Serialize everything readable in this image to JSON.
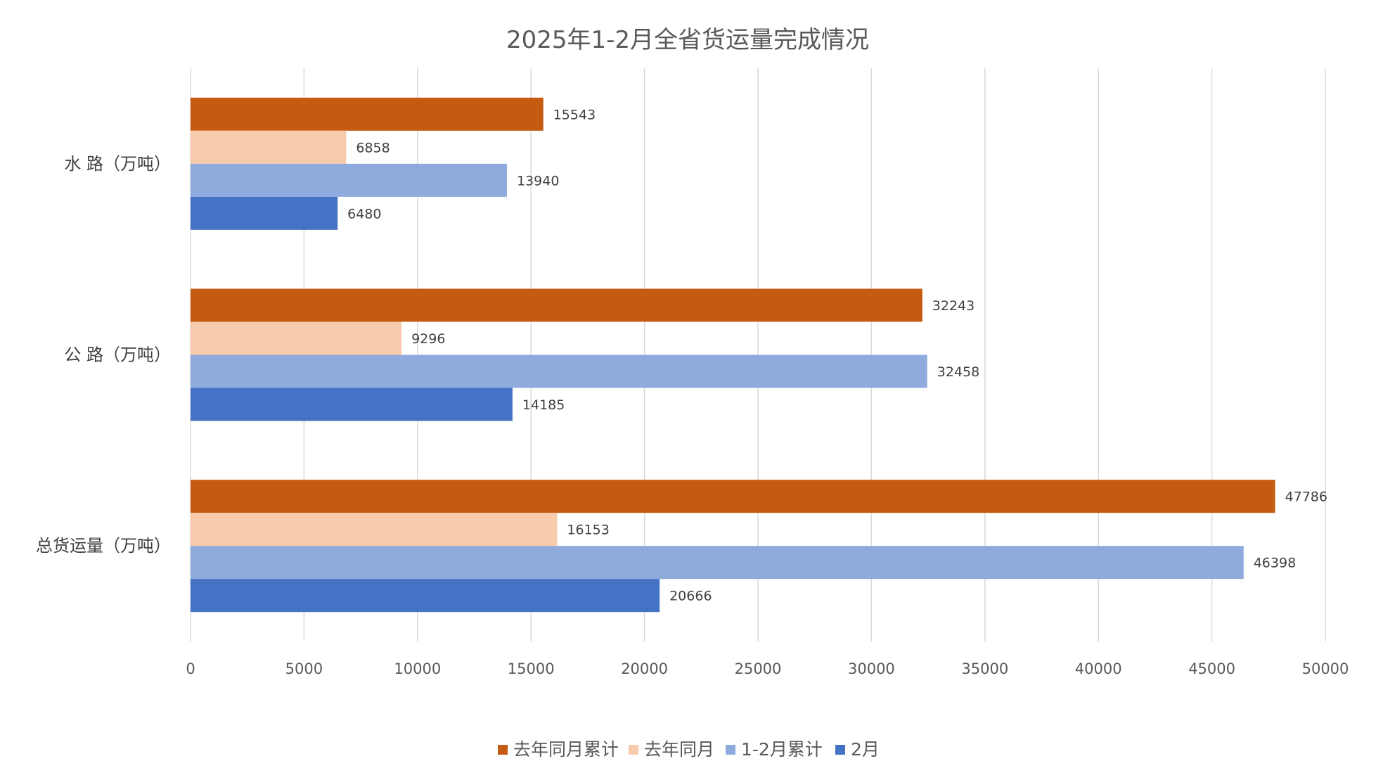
{
  "chart_data": {
    "type": "bar",
    "orientation": "horizontal",
    "title": "2025年1-2月全省货运量完成情况",
    "categories": [
      "水 路（万吨）",
      "公 路（万吨）",
      "总货运量（万吨）"
    ],
    "series": [
      {
        "name": "去年同月累计",
        "color": "#C55A11",
        "values": [
          15543,
          32243,
          47786
        ]
      },
      {
        "name": "去年同月",
        "color": "#F8CBAD",
        "values": [
          6858,
          9296,
          16153
        ]
      },
      {
        "name": "1-2月累计",
        "color": "#8FAADC",
        "values": [
          13940,
          32458,
          46398
        ]
      },
      {
        "name": "2月",
        "color": "#4472C4",
        "values": [
          6480,
          14185,
          20666
        ]
      }
    ],
    "xlim": [
      0,
      50000
    ],
    "xticks": [
      0,
      5000,
      10000,
      15000,
      20000,
      25000,
      30000,
      35000,
      40000,
      45000,
      50000
    ],
    "xlabel": "",
    "ylabel": "",
    "grid": true,
    "legend_position": "bottom"
  }
}
